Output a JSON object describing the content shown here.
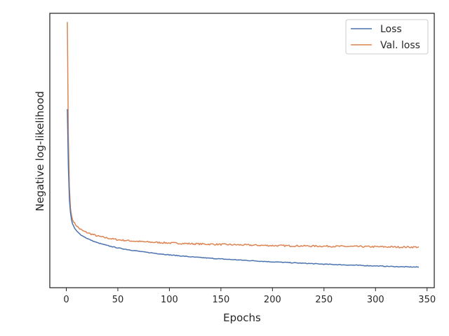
{
  "chart_data": {
    "type": "line",
    "title": "",
    "xlabel": "Epochs",
    "ylabel": "Negative log-likelihood",
    "xlim": [
      -16,
      357
    ],
    "ylim": [
      0.035,
      0.98
    ],
    "x_ticks": [
      0,
      50,
      100,
      150,
      200,
      250,
      300,
      350
    ],
    "y_ticks_visible": false,
    "grid": false,
    "legend_position": "top-right",
    "series": [
      {
        "name": "Loss",
        "color": "#4c72b0",
        "x": [
          1,
          2,
          3,
          4,
          5,
          6,
          8,
          10,
          13,
          16,
          20,
          25,
          30,
          40,
          50,
          60,
          75,
          100,
          125,
          150,
          175,
          200,
          225,
          250,
          275,
          300,
          325,
          342
        ],
        "y": [
          0.65,
          0.45,
          0.34,
          0.295,
          0.27,
          0.255,
          0.24,
          0.23,
          0.22,
          0.213,
          0.205,
          0.197,
          0.19,
          0.18,
          0.172,
          0.166,
          0.158,
          0.148,
          0.14,
          0.134,
          0.129,
          0.124,
          0.12,
          0.116,
          0.113,
          0.11,
          0.107,
          0.106
        ]
      },
      {
        "name": "Val. loss",
        "color": "#dd8452",
        "x": [
          1,
          2,
          3,
          4,
          5,
          6,
          8,
          10,
          13,
          16,
          20,
          25,
          30,
          40,
          50,
          60,
          75,
          100,
          125,
          150,
          175,
          200,
          225,
          250,
          275,
          300,
          325,
          342
        ],
        "y": [
          0.95,
          0.55,
          0.38,
          0.31,
          0.285,
          0.27,
          0.257,
          0.248,
          0.238,
          0.231,
          0.225,
          0.219,
          0.213,
          0.206,
          0.2,
          0.197,
          0.193,
          0.189,
          0.186,
          0.184,
          0.182,
          0.18,
          0.179,
          0.178,
          0.177,
          0.176,
          0.175,
          0.175
        ]
      }
    ]
  }
}
